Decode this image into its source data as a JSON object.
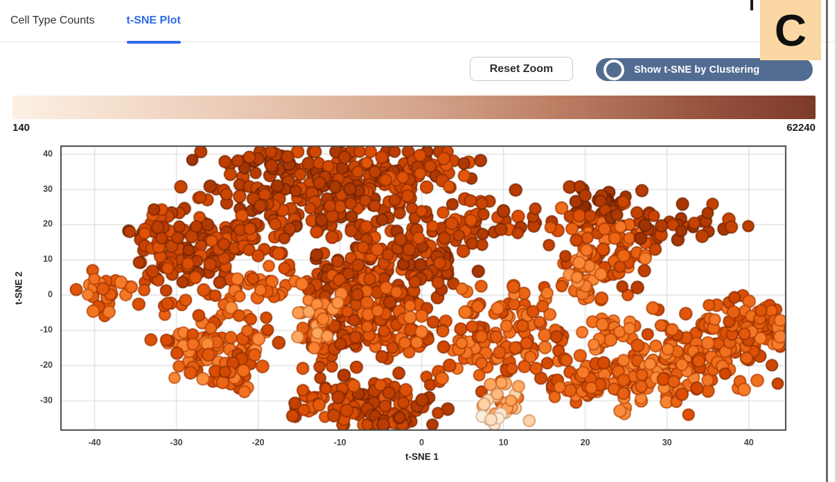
{
  "panel": {
    "label": "C"
  },
  "tabs": {
    "items": [
      {
        "label": "Cell Type Counts",
        "active": false
      },
      {
        "label": "t-SNE Plot",
        "active": true
      }
    ]
  },
  "toolbar": {
    "reset_zoom_label": "Reset Zoom",
    "toggle_label": "Show t-SNE by Clustering",
    "toggle_state": "off"
  },
  "colorbar": {
    "min_label": "140",
    "max_label": "62240"
  },
  "colors": {
    "tab_active": "#2e6ae8",
    "toggle_bg": "#526b91",
    "panel_label_bg": "#fbd7a4",
    "plot_border": "#4a4a4a",
    "grid": "#dcdcdc",
    "right_border": "#6b6b6b"
  },
  "chart_data": {
    "type": "scatter",
    "xlabel": "t-SNE 1",
    "ylabel": "t-SNE 2",
    "xlim": [
      -44.2,
      44.6
    ],
    "ylim": [
      -38.5,
      42.5
    ],
    "xticks": [
      -40,
      -30,
      -20,
      -10,
      0,
      10,
      20,
      30,
      40
    ],
    "yticks": [
      -30,
      -20,
      -10,
      0,
      10,
      20,
      30,
      40
    ],
    "grid": true,
    "color_scale": {
      "label_min": 140,
      "label_max": 62240,
      "colormap": "Oranges",
      "stops": [
        [
          0,
          "#fff5eb"
        ],
        [
          0.15,
          "#fee8d6"
        ],
        [
          0.3,
          "#fdd2a6"
        ],
        [
          0.45,
          "#fdae6b"
        ],
        [
          0.55,
          "#fd9040"
        ],
        [
          0.65,
          "#f2701d"
        ],
        [
          0.75,
          "#dc4e04"
        ],
        [
          0.85,
          "#bb3d02"
        ],
        [
          0.93,
          "#9a3203"
        ],
        [
          1,
          "#7f2704"
        ]
      ]
    },
    "point_radius_px": 8.4,
    "seed": 42,
    "clusters": [
      {
        "cx": -19.4,
        "cy": 32.5,
        "sx": 5.1,
        "sy": 5.5,
        "n": 90,
        "t0": 0.78,
        "t1": 0.92
      },
      {
        "cx": -7.5,
        "cy": 33.5,
        "sx": 5.9,
        "sy": 4.9,
        "n": 110,
        "t0": 0.75,
        "t1": 0.9
      },
      {
        "cx": 0.1,
        "cy": 34.5,
        "sx": 3.2,
        "sy": 2.7,
        "n": 40,
        "t0": 0.72,
        "t1": 0.88
      },
      {
        "cx": -13.5,
        "cy": 24.7,
        "sx": 5.9,
        "sy": 3.5,
        "n": 70,
        "t0": 0.75,
        "t1": 0.9
      },
      {
        "cx": -29.2,
        "cy": 11.0,
        "sx": 3.2,
        "sy": 5.9,
        "n": 110,
        "t0": 0.72,
        "t1": 0.9
      },
      {
        "cx": -32.1,
        "cy": 18.8,
        "sx": 1.5,
        "sy": 2.4,
        "n": 20,
        "t0": 0.72,
        "t1": 0.88
      },
      {
        "cx": -20.3,
        "cy": 15.9,
        "sx": 2.5,
        "sy": 2.9,
        "n": 35,
        "t0": 0.72,
        "t1": 0.88
      },
      {
        "cx": -38.9,
        "cy": 1.2,
        "sx": 1.5,
        "sy": 3.1,
        "n": 25,
        "t0": 0.58,
        "t1": 0.75
      },
      {
        "cx": -25.3,
        "cy": -12.5,
        "sx": 3.4,
        "sy": 5.5,
        "n": 90,
        "t0": 0.55,
        "t1": 0.8
      },
      {
        "cx": -23.6,
        "cy": -22.4,
        "sx": 2.1,
        "sy": 2.4,
        "n": 25,
        "t0": 0.6,
        "t1": 0.78
      },
      {
        "cx": -7.5,
        "cy": 7.1,
        "sx": 3.8,
        "sy": 6.9,
        "n": 140,
        "t0": 0.7,
        "t1": 0.9
      },
      {
        "cx": -5.8,
        "cy": -8.6,
        "sx": 3.8,
        "sy": 5.9,
        "n": 120,
        "t0": 0.65,
        "t1": 0.85
      },
      {
        "cx": -12.6,
        "cy": -6.7,
        "sx": 1.3,
        "sy": 3.9,
        "n": 20,
        "t0": 0.45,
        "t1": 0.6
      },
      {
        "cx": -19.0,
        "cy": 2.2,
        "sx": 1.9,
        "sy": 2.7,
        "n": 25,
        "t0": 0.6,
        "t1": 0.75
      },
      {
        "cx": 1.4,
        "cy": 12.9,
        "sx": 2.4,
        "sy": 4.9,
        "n": 60,
        "t0": 0.75,
        "t1": 0.9
      },
      {
        "cx": 7.7,
        "cy": 21.8,
        "sx": 3.8,
        "sy": 3.5,
        "n": 45,
        "t0": 0.72,
        "t1": 0.88
      },
      {
        "cx": -5.8,
        "cy": -30.2,
        "sx": 4.2,
        "sy": 4.3,
        "n": 90,
        "t0": 0.7,
        "t1": 0.88
      },
      {
        "cx": -12.6,
        "cy": -32.2,
        "sx": 1.5,
        "sy": 2.7,
        "n": 20,
        "t0": 0.7,
        "t1": 0.85
      },
      {
        "cx": -3.7,
        "cy": -37.1,
        "sx": 1.9,
        "sy": 1.6,
        "n": 15,
        "t0": 0.75,
        "t1": 0.88
      },
      {
        "cx": 10.3,
        "cy": -12.5,
        "sx": 5.1,
        "sy": 7.8,
        "n": 130,
        "t0": 0.6,
        "t1": 0.8
      },
      {
        "cx": 9.8,
        "cy": -30.2,
        "sx": 1.7,
        "sy": 3.5,
        "n": 22,
        "t0": 0.25,
        "t1": 0.5
      },
      {
        "cx": 9.4,
        "cy": -35.1,
        "sx": 0.9,
        "sy": 1.2,
        "n": 6,
        "t0": 0.1,
        "t1": 0.22
      },
      {
        "cx": 22.1,
        "cy": 24.7,
        "sx": 2.1,
        "sy": 2.9,
        "n": 35,
        "t0": 0.85,
        "t1": 0.97
      },
      {
        "cx": 21.7,
        "cy": 12.9,
        "sx": 3.0,
        "sy": 5.9,
        "n": 90,
        "t0": 0.6,
        "t1": 0.85
      },
      {
        "cx": 19.2,
        "cy": 6.1,
        "sx": 1.5,
        "sy": 2.9,
        "n": 20,
        "t0": 0.5,
        "t1": 0.65
      },
      {
        "cx": 31.9,
        "cy": 20.8,
        "sx": 3.8,
        "sy": 2.2,
        "n": 35,
        "t0": 0.8,
        "t1": 0.93
      },
      {
        "cx": 27.2,
        "cy": -23.3,
        "sx": 3.4,
        "sy": 4.9,
        "n": 90,
        "t0": 0.55,
        "t1": 0.75
      },
      {
        "cx": 34.8,
        "cy": -15.5,
        "sx": 3.8,
        "sy": 5.5,
        "n": 110,
        "t0": 0.6,
        "t1": 0.8
      },
      {
        "cx": 40.8,
        "cy": -8.6,
        "sx": 2.5,
        "sy": 3.9,
        "n": 60,
        "t0": 0.6,
        "t1": 0.8
      },
      {
        "cx": 23.0,
        "cy": -10.6,
        "sx": 1.5,
        "sy": 2.4,
        "n": 18,
        "t0": 0.55,
        "t1": 0.7
      },
      {
        "cx": 20.4,
        "cy": -25.3,
        "sx": 2.5,
        "sy": 3.5,
        "n": 40,
        "t0": 0.6,
        "t1": 0.78
      }
    ]
  }
}
